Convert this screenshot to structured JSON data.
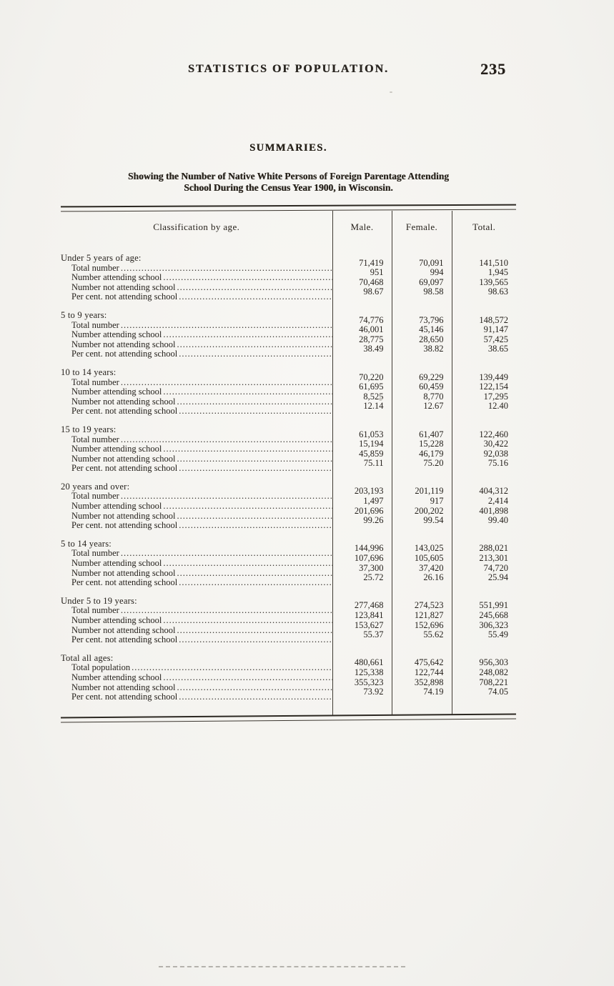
{
  "header": {
    "running_title": "STATISTICS OF POPULATION.",
    "page_number": "235"
  },
  "section": {
    "title": "SUMMARIES."
  },
  "caption": {
    "line1": "Showing the Number of Native White Persons of Foreign Parentage Attending",
    "line2": "School During the Census Year 1900, in Wisconsin."
  },
  "table": {
    "columns": {
      "classification": "Classification by age.",
      "male": "Male.",
      "female": "Female.",
      "total": "Total."
    },
    "groups": [
      {
        "title": "Under 5 years of age:",
        "rows": [
          {
            "label": "Total number",
            "male": "71,419",
            "female": "70,091",
            "total": "141,510"
          },
          {
            "label": "Number attending school",
            "male": "951",
            "female": "994",
            "total": "1,945"
          },
          {
            "label": "Number not attending school",
            "male": "70,468",
            "female": "69,097",
            "total": "139,565"
          },
          {
            "label": "Per cent. not attending school",
            "male": "98.67",
            "female": "98.58",
            "total": "98.63"
          }
        ]
      },
      {
        "title": "5 to 9 years:",
        "rows": [
          {
            "label": "Total number",
            "male": "74,776",
            "female": "73,796",
            "total": "148,572"
          },
          {
            "label": "Number attending school",
            "male": "46,001",
            "female": "45,146",
            "total": "91,147"
          },
          {
            "label": "Number not attending school",
            "male": "28,775",
            "female": "28,650",
            "total": "57,425"
          },
          {
            "label": "Per cent. not attending school",
            "male": "38.49",
            "female": "38.82",
            "total": "38.65"
          }
        ]
      },
      {
        "title": "10 to 14 years:",
        "rows": [
          {
            "label": "Total number",
            "male": "70,220",
            "female": "69,229",
            "total": "139,449"
          },
          {
            "label": "Number attending school",
            "male": "61,695",
            "female": "60,459",
            "total": "122,154"
          },
          {
            "label": "Number not attending school",
            "male": "8,525",
            "female": "8,770",
            "total": "17,295"
          },
          {
            "label": "Per cent. not attending school",
            "male": "12.14",
            "female": "12.67",
            "total": "12.40"
          }
        ]
      },
      {
        "title": "15 to 19 years:",
        "rows": [
          {
            "label": "Total number",
            "male": "61,053",
            "female": "61,407",
            "total": "122,460"
          },
          {
            "label": "Number attending school",
            "male": "15,194",
            "female": "15,228",
            "total": "30,422"
          },
          {
            "label": "Number not attending school",
            "male": "45,859",
            "female": "46,179",
            "total": "92,038"
          },
          {
            "label": "Per cent. not attending school",
            "male": "75.11",
            "female": "75.20",
            "total": "75.16"
          }
        ]
      },
      {
        "title": "20 years and over:",
        "rows": [
          {
            "label": "Total number",
            "male": "203,193",
            "female": "201,119",
            "total": "404,312"
          },
          {
            "label": "Number attending school",
            "male": "1,497",
            "female": "917",
            "total": "2,414"
          },
          {
            "label": "Number not attending school",
            "male": "201,696",
            "female": "200,202",
            "total": "401,898"
          },
          {
            "label": "Per cent. not attending school",
            "male": "99.26",
            "female": "99.54",
            "total": "99.40"
          }
        ]
      },
      {
        "title": "5 to 14 years:",
        "rows": [
          {
            "label": "Total number",
            "male": "144,996",
            "female": "143,025",
            "total": "288,021"
          },
          {
            "label": "Number attending school",
            "male": "107,696",
            "female": "105,605",
            "total": "213,301"
          },
          {
            "label": "Number not attending school",
            "male": "37,300",
            "female": "37,420",
            "total": "74,720"
          },
          {
            "label": "Per cent. not attending school",
            "male": "25.72",
            "female": "26.16",
            "total": "25.94"
          }
        ]
      },
      {
        "title": "Under 5 to 19 years:",
        "rows": [
          {
            "label": "Total number",
            "male": "277,468",
            "female": "274,523",
            "total": "551,991"
          },
          {
            "label": "Number attending school",
            "male": "123,841",
            "female": "121,827",
            "total": "245,668"
          },
          {
            "label": "Number not attending school",
            "male": "153,627",
            "female": "152,696",
            "total": "306,323"
          },
          {
            "label": "Per cent. not attending school",
            "male": "55.37",
            "female": "55.62",
            "total": "55.49"
          }
        ]
      },
      {
        "title": "Total all ages:",
        "rows": [
          {
            "label": "Total population",
            "male": "480,661",
            "female": "475,642",
            "total": "956,303"
          },
          {
            "label": "Number attending school",
            "male": "125,338",
            "female": "122,744",
            "total": "248,082"
          },
          {
            "label": "Number not attending school",
            "male": "355,323",
            "female": "352,898",
            "total": "708,221"
          },
          {
            "label": "Per cent. not attending school",
            "male": "73.92",
            "female": "74.19",
            "total": "74.05"
          }
        ]
      }
    ]
  }
}
